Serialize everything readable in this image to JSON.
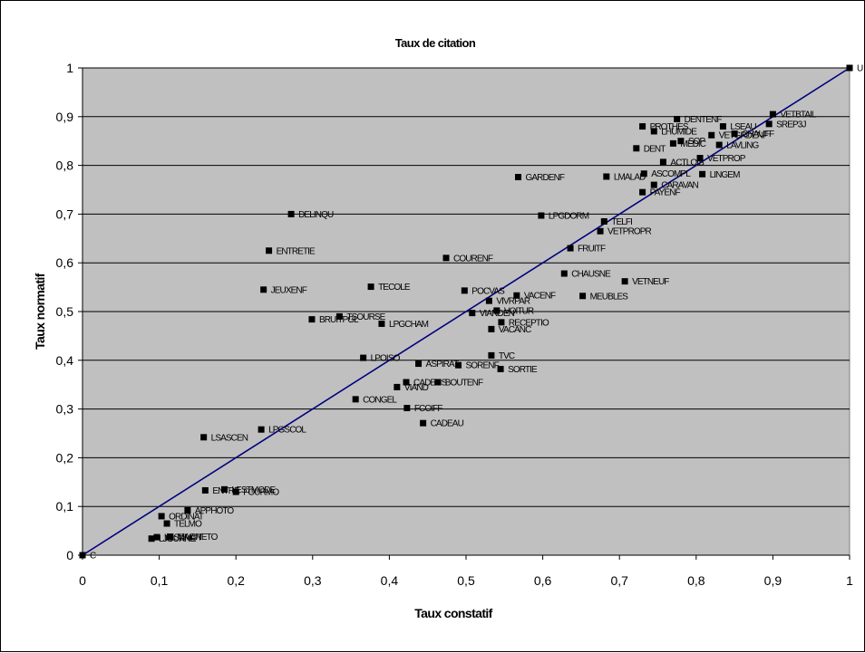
{
  "chart_data": {
    "type": "scatter",
    "title": "Taux de citation",
    "xlabel": "Taux constatif",
    "ylabel": "Taux normatif",
    "xlim": [
      0,
      1
    ],
    "ylim": [
      0,
      1
    ],
    "xticks": [
      "0",
      "0,1",
      "0,2",
      "0,3",
      "0,4",
      "0,5",
      "0,6",
      "0,7",
      "0,8",
      "0,9",
      "1"
    ],
    "yticks": [
      "0",
      "0,1",
      "0,2",
      "0,3",
      "0,4",
      "0,5",
      "0,6",
      "0,7",
      "0,8",
      "0,9",
      "1"
    ],
    "grid": "horizontal",
    "plot_background": "#c0c0c0",
    "marker_color": "#000000",
    "trendline": {
      "from": [
        0,
        0
      ],
      "to": [
        1,
        1
      ],
      "color": "#000080"
    },
    "points": [
      {
        "label": "U",
        "x": 1.0,
        "y": 1.0
      },
      {
        "label": "C",
        "x": 0.0,
        "y": 0.0
      },
      {
        "label": "VETBTAIL",
        "x": 0.9,
        "y": 0.905
      },
      {
        "label": "SREP3J",
        "x": 0.895,
        "y": 0.885
      },
      {
        "label": "DENTENF",
        "x": 0.775,
        "y": 0.895
      },
      {
        "label": "LSEAU",
        "x": 0.835,
        "y": 0.88
      },
      {
        "label": "PROTHES",
        "x": 0.73,
        "y": 0.88
      },
      {
        "label": "LHUMIDE",
        "x": 0.745,
        "y": 0.87
      },
      {
        "label": "VETGRDENF",
        "x": 0.82,
        "y": 0.862
      },
      {
        "label": "CHAUFF",
        "x": 0.85,
        "y": 0.865
      },
      {
        "label": "SOP",
        "x": 0.78,
        "y": 0.85
      },
      {
        "label": "MEDIC",
        "x": 0.77,
        "y": 0.845
      },
      {
        "label": "LAVLING",
        "x": 0.83,
        "y": 0.842
      },
      {
        "label": "DENT",
        "x": 0.722,
        "y": 0.835
      },
      {
        "label": "VETPROP",
        "x": 0.805,
        "y": 0.815
      },
      {
        "label": "ACTLOIS",
        "x": 0.757,
        "y": 0.807
      },
      {
        "label": "ASCOMPL",
        "x": 0.732,
        "y": 0.783
      },
      {
        "label": "LINGEM",
        "x": 0.808,
        "y": 0.782
      },
      {
        "label": "GARDENF",
        "x": 0.568,
        "y": 0.776
      },
      {
        "label": "LMALAD",
        "x": 0.683,
        "y": 0.777
      },
      {
        "label": "CARAVAN",
        "x": 0.745,
        "y": 0.76
      },
      {
        "label": "PAYENF",
        "x": 0.73,
        "y": 0.745
      },
      {
        "label": "DELINQU",
        "x": 0.272,
        "y": 0.7
      },
      {
        "label": "LPGDORM",
        "x": 0.598,
        "y": 0.697
      },
      {
        "label": "TELFI",
        "x": 0.68,
        "y": 0.685
      },
      {
        "label": "VETPROPR",
        "x": 0.675,
        "y": 0.665
      },
      {
        "label": "FRUITF",
        "x": 0.636,
        "y": 0.63
      },
      {
        "label": "ENTRETIE",
        "x": 0.243,
        "y": 0.625
      },
      {
        "label": "COURENF",
        "x": 0.474,
        "y": 0.61
      },
      {
        "label": "CHAUSNE",
        "x": 0.628,
        "y": 0.578
      },
      {
        "label": "VETNEUF",
        "x": 0.707,
        "y": 0.562
      },
      {
        "label": "TECOLE",
        "x": 0.376,
        "y": 0.551
      },
      {
        "label": "JEUXENF",
        "x": 0.236,
        "y": 0.545
      },
      {
        "label": "POCVAS",
        "x": 0.498,
        "y": 0.543
      },
      {
        "label": "VACENF",
        "x": 0.566,
        "y": 0.533
      },
      {
        "label": "MEUBLES",
        "x": 0.652,
        "y": 0.532
      },
      {
        "label": "VIVRPAR",
        "x": 0.53,
        "y": 0.522
      },
      {
        "label": "VOITUR",
        "x": 0.54,
        "y": 0.502
      },
      {
        "label": "VIANDEN",
        "x": 0.508,
        "y": 0.497
      },
      {
        "label": "TSOURSE",
        "x": 0.335,
        "y": 0.49
      },
      {
        "label": "BRUITPGL",
        "x": 0.299,
        "y": 0.484
      },
      {
        "label": "RECEPTIO",
        "x": 0.546,
        "y": 0.478
      },
      {
        "label": "LPGCHAM",
        "x": 0.39,
        "y": 0.475
      },
      {
        "label": "VACANC",
        "x": 0.533,
        "y": 0.464
      },
      {
        "label": "TVC",
        "x": 0.533,
        "y": 0.41
      },
      {
        "label": "LPOISO",
        "x": 0.366,
        "y": 0.405
      },
      {
        "label": "ASPIRAT",
        "x": 0.438,
        "y": 0.393
      },
      {
        "label": "SORENF",
        "x": 0.49,
        "y": 0.39
      },
      {
        "label": "SORTIE",
        "x": 0.545,
        "y": 0.382
      },
      {
        "label": "CADENS",
        "x": 0.422,
        "y": 0.355
      },
      {
        "label": "BOUTENF",
        "x": 0.463,
        "y": 0.355
      },
      {
        "label": "VIAND",
        "x": 0.41,
        "y": 0.345
      },
      {
        "label": "CONGEL",
        "x": 0.356,
        "y": 0.32
      },
      {
        "label": "FCOIFF",
        "x": 0.423,
        "y": 0.302
      },
      {
        "label": "CADEAU",
        "x": 0.444,
        "y": 0.271
      },
      {
        "label": "LPGSCOL",
        "x": 0.233,
        "y": 0.258
      },
      {
        "label": "LSASCEN",
        "x": 0.158,
        "y": 0.242
      },
      {
        "label": "LESTMODE",
        "x": 0.185,
        "y": 0.135
      },
      {
        "label": "ENTRE",
        "x": 0.16,
        "y": 0.133
      },
      {
        "label": "FOURMO",
        "x": 0.2,
        "y": 0.13
      },
      {
        "label": "APPHOTO",
        "x": 0.137,
        "y": 0.092
      },
      {
        "label": "ORDINAT",
        "x": 0.103,
        "y": 0.08
      },
      {
        "label": "TELMO",
        "x": 0.11,
        "y": 0.065
      },
      {
        "label": "MAGNETO",
        "x": 0.114,
        "y": 0.038
      },
      {
        "label": "LESEMOT",
        "x": 0.097,
        "y": 0.037
      },
      {
        "label": "LJOURNE",
        "x": 0.09,
        "y": 0.034
      }
    ]
  }
}
